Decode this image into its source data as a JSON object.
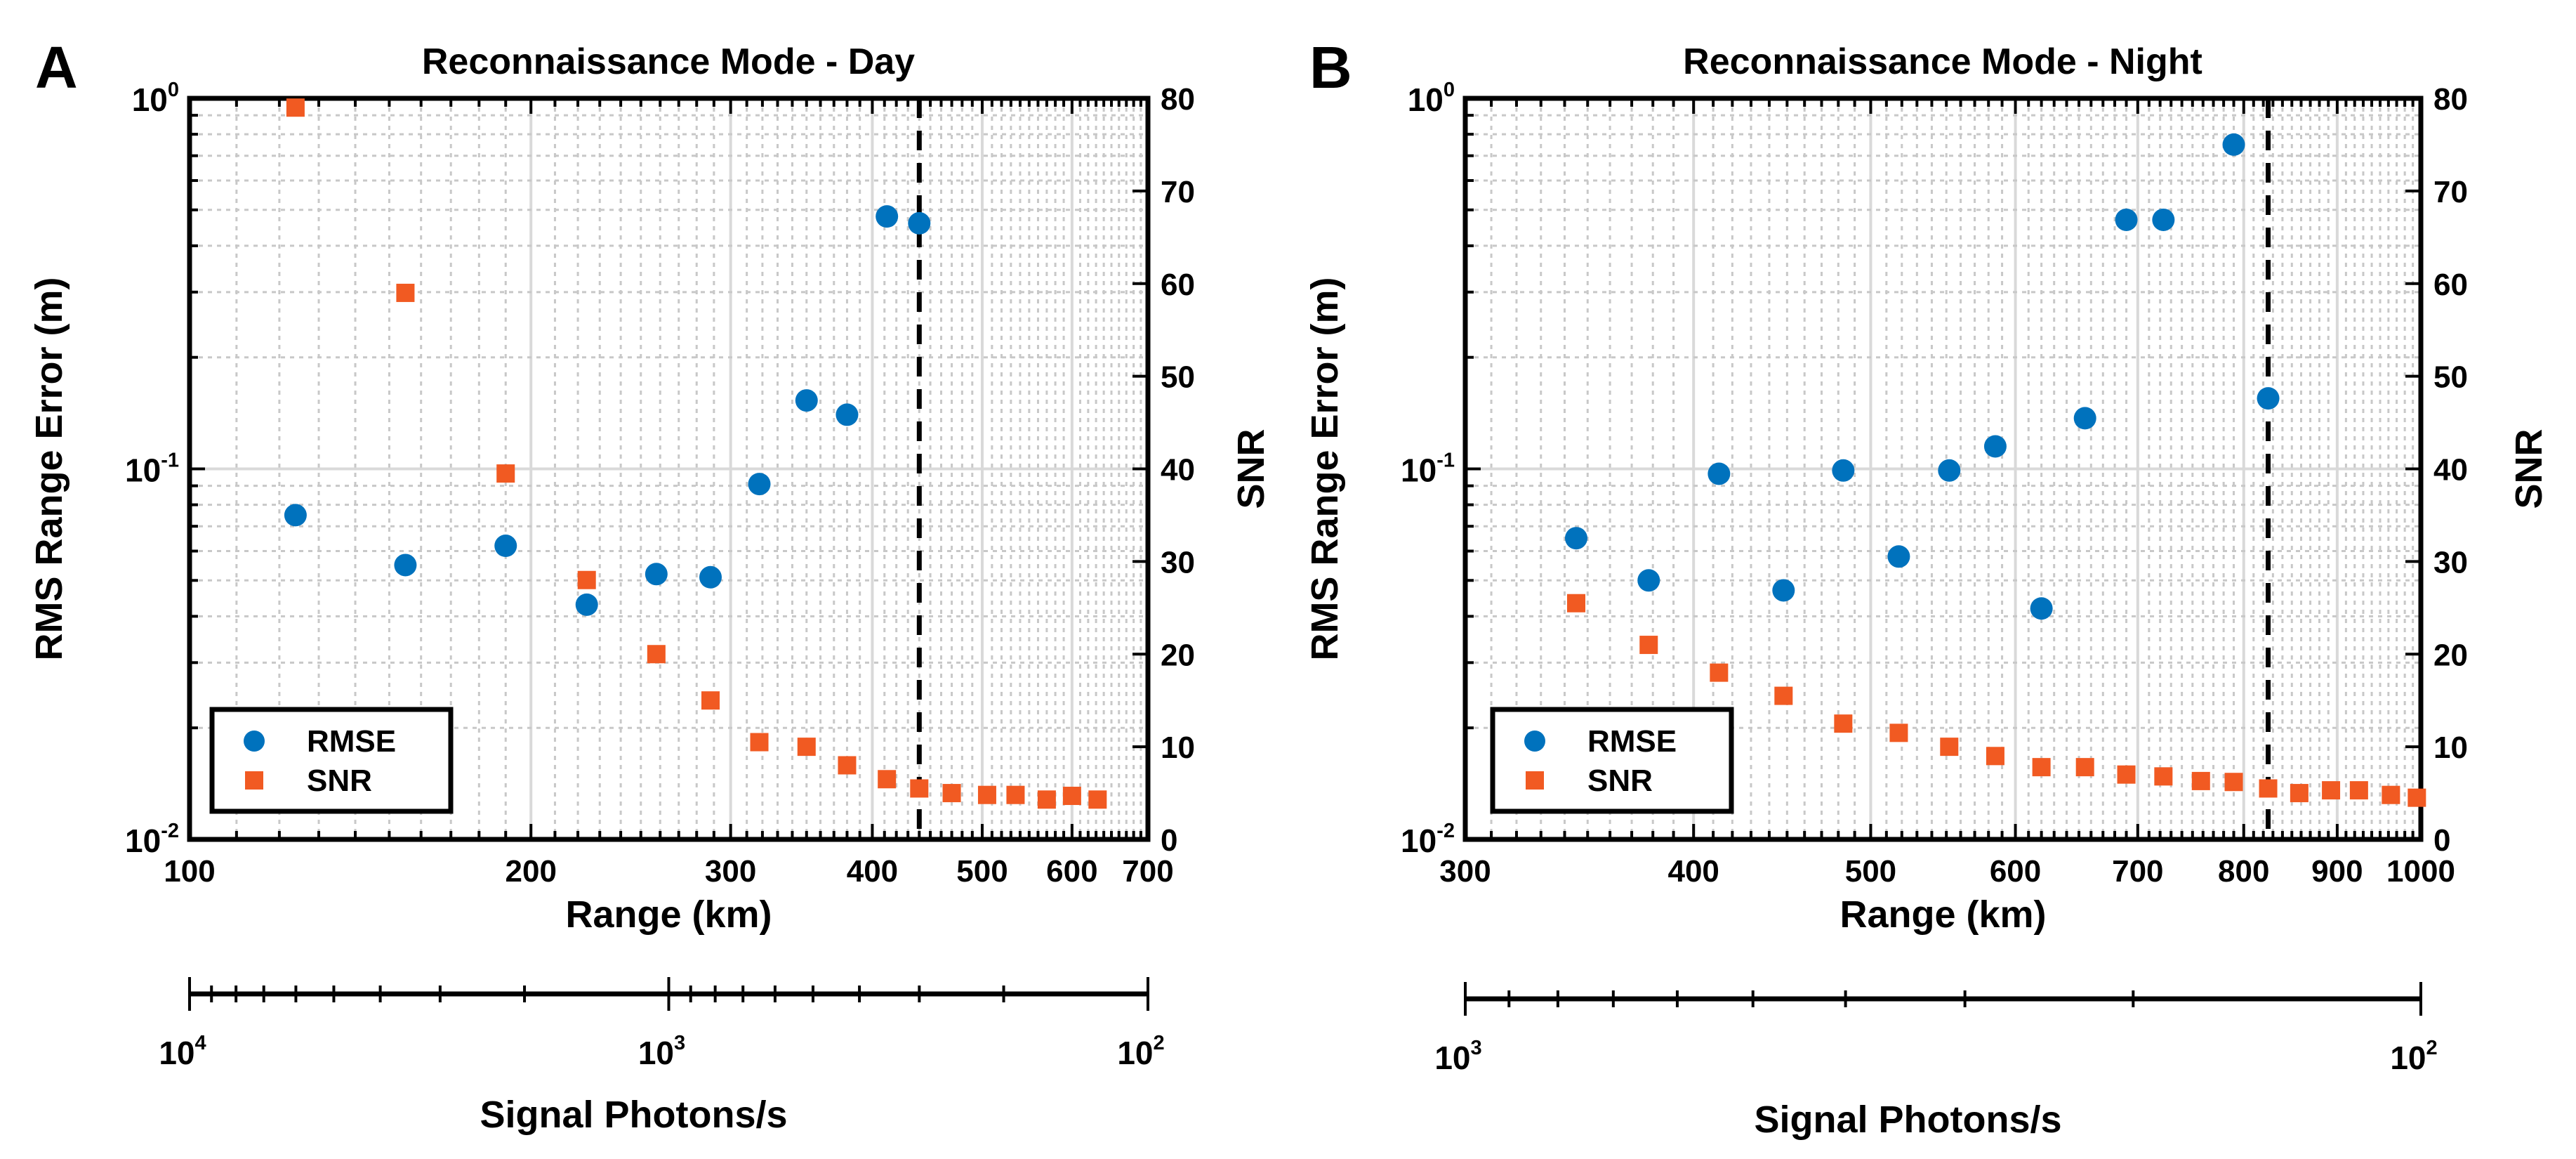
{
  "colors": {
    "rmse": "#0072BD",
    "snr": "#F15A22"
  },
  "chart_data": [
    {
      "type": "scatter",
      "panel_label": "A",
      "title": "Reconnaissance Mode - Day",
      "xlabel": "Range (km)",
      "ylabel_left": "RMS Range Error (m)",
      "ylabel_right": "SNR",
      "xscale": "log",
      "xlim": [
        100,
        700
      ],
      "xticks": [
        100,
        200,
        300,
        400,
        500,
        600,
        700
      ],
      "xtick_labels": [
        "100",
        "200",
        "300",
        "400",
        "500",
        "600",
        "700"
      ],
      "yleft_scale": "log",
      "yleft_lim": [
        0.01,
        1
      ],
      "yleft_ticks": [
        {
          "base": "10",
          "exp": "-2",
          "v": 0.01
        },
        {
          "base": "10",
          "exp": "-1",
          "v": 0.1
        },
        {
          "base": "10",
          "exp": "0",
          "v": 1
        }
      ],
      "yright_lim": [
        0,
        80
      ],
      "yright_ticks": [
        0,
        10,
        20,
        30,
        40,
        50,
        60,
        70,
        80
      ],
      "grid": true,
      "vertical_line_x": 440,
      "legend_position": "bottom-left",
      "series": [
        {
          "name": "RMSE",
          "marker": "circle",
          "axis": "left",
          "x": [
            124,
            155,
            190,
            224,
            258,
            288,
            318,
            350,
            380,
            412,
            440
          ],
          "y": [
            0.075,
            0.055,
            0.062,
            0.043,
            0.052,
            0.051,
            0.091,
            0.153,
            0.14,
            0.48,
            0.46
          ]
        },
        {
          "name": "SNR",
          "marker": "square",
          "axis": "right",
          "x": [
            124,
            155,
            190,
            224,
            258,
            288,
            318,
            350,
            380,
            412,
            440,
            470,
            505,
            535,
            570,
            600,
            632
          ],
          "y": [
            79,
            59,
            39.5,
            28,
            20,
            15,
            10.5,
            10,
            8,
            6.5,
            5.5,
            5,
            4.8,
            4.8,
            4.3,
            4.7,
            4.3
          ]
        }
      ],
      "secondary_axis": {
        "label": "Signal Photons/s",
        "scale": "log",
        "range_decades": [
          4,
          2
        ],
        "tick_labels": [
          {
            "base": "10",
            "exp": "4"
          },
          {
            "base": "10",
            "exp": "3"
          },
          {
            "base": "10",
            "exp": "2"
          }
        ]
      }
    },
    {
      "type": "scatter",
      "panel_label": "B",
      "title": "Reconnaissance Mode - Night",
      "xlabel": "Range (km)",
      "ylabel_left": "RMS Range Error (m)",
      "ylabel_right": "SNR",
      "xscale": "log",
      "xlim": [
        300,
        1000
      ],
      "xticks": [
        300,
        400,
        500,
        600,
        700,
        800,
        900,
        1000
      ],
      "xtick_labels": [
        "300",
        "400",
        "500",
        "600",
        "700",
        "800",
        "900",
        "1000"
      ],
      "yleft_scale": "log",
      "yleft_lim": [
        0.01,
        1
      ],
      "yleft_ticks": [
        {
          "base": "10",
          "exp": "-2",
          "v": 0.01
        },
        {
          "base": "10",
          "exp": "-1",
          "v": 0.1
        },
        {
          "base": "10",
          "exp": "0",
          "v": 1
        }
      ],
      "yright_lim": [
        0,
        80
      ],
      "yright_ticks": [
        0,
        10,
        20,
        30,
        40,
        50,
        60,
        70,
        80
      ],
      "grid": true,
      "vertical_line_x": 825,
      "legend_position": "bottom-left",
      "series": [
        {
          "name": "RMSE",
          "marker": "circle",
          "axis": "left",
          "x": [
            345,
            378,
            413,
            448,
            483,
            518,
            552,
            585,
            620,
            655,
            690,
            723,
            790,
            825
          ],
          "y": [
            0.065,
            0.05,
            0.097,
            0.047,
            0.099,
            0.058,
            0.099,
            0.115,
            0.042,
            0.137,
            0.47,
            0.47,
            0.75,
            0.155
          ]
        },
        {
          "name": "SNR",
          "marker": "square",
          "axis": "right",
          "x": [
            345,
            378,
            413,
            448,
            483,
            518,
            552,
            585,
            620,
            655,
            690,
            723,
            758,
            790,
            825,
            858,
            893,
            925,
            963,
            995
          ],
          "y": [
            25.5,
            21,
            18,
            15.5,
            12.5,
            11.5,
            10,
            9,
            7.8,
            7.8,
            7,
            6.8,
            6.3,
            6.2,
            5.5,
            5,
            5.3,
            5.3,
            4.8,
            4.5
          ]
        }
      ],
      "secondary_axis": {
        "label": "Signal Photons/s",
        "scale": "log",
        "range_decades": [
          3,
          2
        ],
        "tick_labels": [
          {
            "base": "10",
            "exp": "3"
          },
          {
            "base": "10",
            "exp": "2"
          }
        ]
      }
    }
  ]
}
